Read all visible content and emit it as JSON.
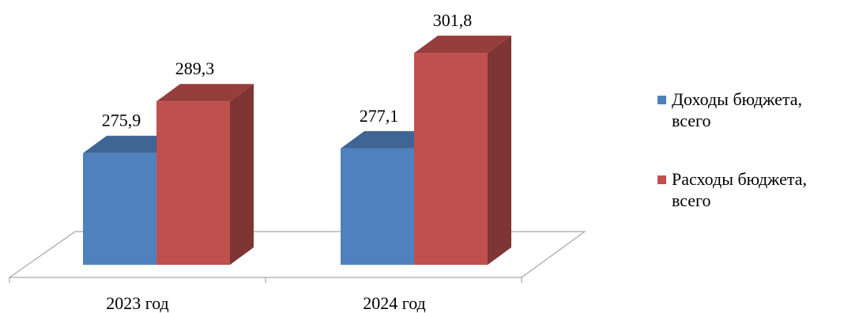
{
  "chart_data": {
    "type": "bar",
    "title": "",
    "xlabel": "",
    "ylabel": "",
    "categories": [
      "2023 год",
      "2024 год"
    ],
    "series": [
      {
        "name": "Доходы бюджета, всего",
        "values": [
          275.9,
          277.1
        ],
        "labels": [
          "275,9",
          "277,1"
        ],
        "color": "#4f81bd"
      },
      {
        "name": "Расходы бюджета, всего",
        "values": [
          289.3,
          301.8
        ],
        "labels": [
          "289,3",
          "301,8"
        ],
        "color": "#c0504d"
      }
    ],
    "ylim": [
      247,
      310
    ],
    "grid": false,
    "legend": "right",
    "style": "3d-clustered-column"
  }
}
